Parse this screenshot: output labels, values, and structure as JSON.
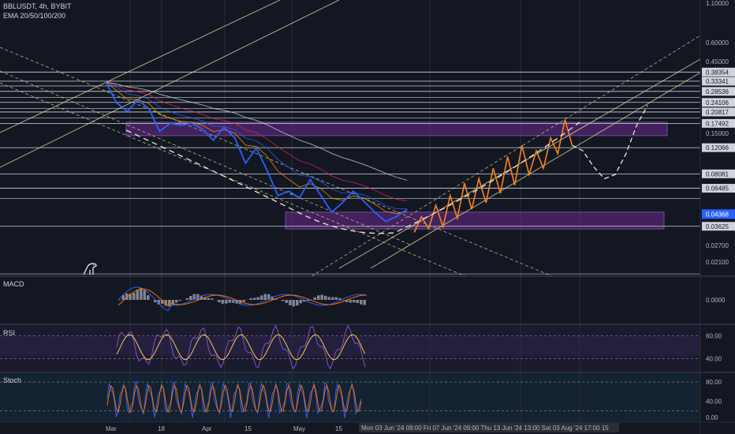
{
  "header": {
    "symbol": "BBLUSDT, 4h, BYBIT",
    "indicator": "EMA 20/50/100/200"
  },
  "panes": {
    "macd": "MACD",
    "rsi": "RSI",
    "stoch": "Stoch"
  },
  "colors": {
    "background": "#131722",
    "price": "#2962ff",
    "projection": "#f7841e",
    "zone": "#6a2b8c",
    "channel": "#e6d99a",
    "level": "#d1d4dc",
    "current_price_tag": "#2962ff"
  },
  "chart_data": [
    {
      "type": "line",
      "pane": "price",
      "scale": "log",
      "ylim": [
        0.021,
        1.1
      ],
      "price_ticks": [
        1.1,
        0.6,
        0.45,
        0.15,
        0.027,
        0.021
      ],
      "level_labels": [
        {
          "label": "0.38354",
          "value": 0.38354
        },
        {
          "label": "0.33341",
          "value": 0.33341
        },
        {
          "label": "0.28536",
          "value": 0.28536
        },
        {
          "label": "0.24106",
          "value": 0.24106
        },
        {
          "label": "0.20817",
          "value": 0.20817
        },
        {
          "label": "0.17492",
          "value": 0.17492
        },
        {
          "label": "0.12066",
          "value": 0.12066
        },
        {
          "label": "0.08081",
          "value": 0.08081
        },
        {
          "label": "0.06485",
          "value": 0.06485
        },
        {
          "label": "0.03625",
          "value": 0.03625
        }
      ],
      "extra_levels": [
        0.31,
        0.26,
        0.22,
        0.19,
        0.0555,
        0.0175
      ],
      "current_price": {
        "label": "0.04368",
        "value": 0.04368
      },
      "zones": [
        {
          "from": 0.145,
          "to": 0.178
        },
        {
          "from": 0.0348,
          "to": 0.045
        }
      ],
      "x_labels": [
        "Mar",
        "18",
        "Apr",
        "15",
        "May",
        "15"
      ],
      "x_cursor_label": "Mon 03 Jun '24   09:00   Fri 07 Jun '24   09:00   Thu 13 Jun '24   13:00   Sat 03 Aug '24   17:00   15",
      "series": {
        "price": {
          "x": [
            0,
            3,
            6,
            9,
            12,
            15,
            18,
            21,
            24,
            27,
            30,
            33,
            36,
            39,
            42,
            45,
            48,
            51,
            54,
            57,
            60,
            63,
            66,
            69,
            72,
            75,
            78,
            81,
            84
          ],
          "y": [
            0.33,
            0.24,
            0.21,
            0.25,
            0.22,
            0.155,
            0.175,
            0.17,
            0.175,
            0.16,
            0.135,
            0.165,
            0.14,
            0.095,
            0.12,
            0.085,
            0.058,
            0.062,
            0.056,
            0.074,
            0.058,
            0.045,
            0.052,
            0.062,
            0.053,
            0.045,
            0.039,
            0.042,
            0.047
          ]
        },
        "projection": {
          "x": [
            86,
            88,
            90,
            92,
            94,
            96,
            98,
            100,
            102,
            104,
            106,
            108,
            110,
            112,
            114,
            116,
            118,
            120,
            122,
            124,
            126,
            128,
            130
          ],
          "y": [
            0.033,
            0.042,
            0.035,
            0.05,
            0.036,
            0.058,
            0.041,
            0.07,
            0.047,
            0.075,
            0.052,
            0.088,
            0.06,
            0.105,
            0.068,
            0.125,
            0.08,
            0.115,
            0.088,
            0.14,
            0.11,
            0.185,
            0.125
          ]
        },
        "forecast": {
          "x": [
            130,
            133,
            136,
            139,
            142,
            145,
            148,
            151
          ],
          "y": [
            0.125,
            0.115,
            0.09,
            0.075,
            0.08,
            0.11,
            0.17,
            0.23
          ]
        }
      }
    },
    {
      "type": "area",
      "pane": "macd",
      "y_ticks": [
        "0.0000"
      ]
    },
    {
      "type": "line",
      "pane": "rsi",
      "y_ticks": [
        "60.00",
        "40.00"
      ]
    },
    {
      "type": "line",
      "pane": "stoch",
      "y_ticks": [
        "80.00",
        "40.00",
        "0.00"
      ]
    }
  ]
}
